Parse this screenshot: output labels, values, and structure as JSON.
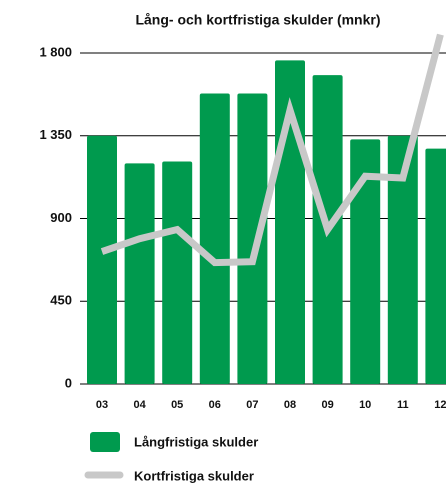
{
  "chart_data": {
    "type": "bar_line",
    "title": "Lång- och kortfristiga skulder (mnkr)",
    "categories": [
      "03",
      "04",
      "05",
      "06",
      "07",
      "08",
      "09",
      "10",
      "11",
      "12"
    ],
    "series": [
      {
        "name": "Långfristiga skulder",
        "type": "bar",
        "color": "#009a4e",
        "values": [
          1350,
          1200,
          1210,
          1580,
          1580,
          1760,
          1680,
          1330,
          1350,
          1280
        ]
      },
      {
        "name": "Kortfristiga skulder",
        "type": "line",
        "color": "#c8c8c8",
        "values": [
          720,
          790,
          840,
          660,
          665,
          1490,
          840,
          1130,
          1120,
          1900
        ]
      }
    ],
    "ylim": [
      0,
      1800
    ],
    "yticks": [
      0,
      450,
      900,
      {
        "value": 1350,
        "label": "1 350"
      },
      {
        "value": 1800,
        "label": "1 800"
      }
    ],
    "grid": true
  }
}
